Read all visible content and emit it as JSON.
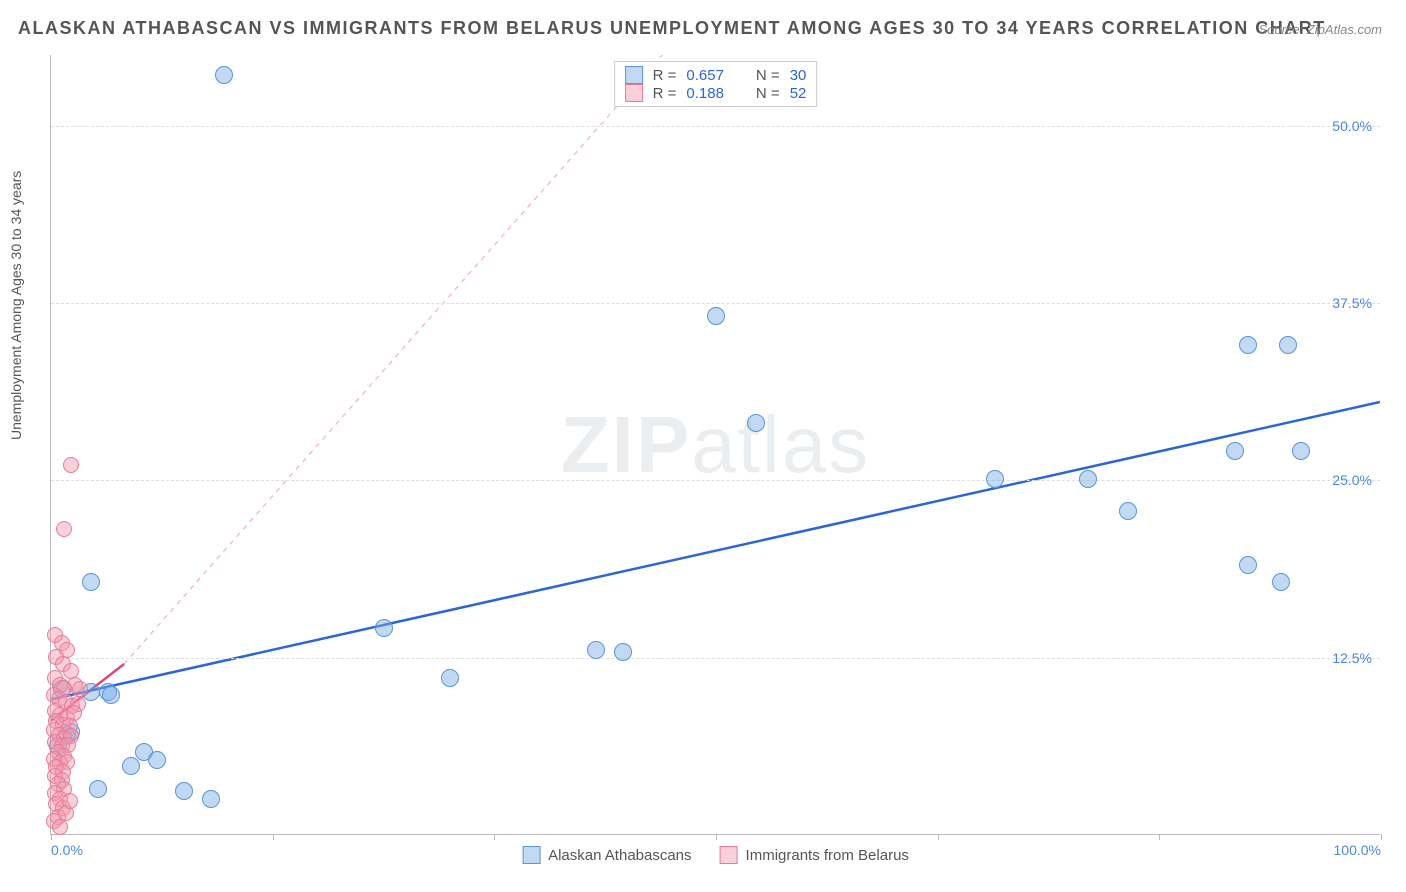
{
  "title": "ALASKAN ATHABASCAN VS IMMIGRANTS FROM BELARUS UNEMPLOYMENT AMONG AGES 30 TO 34 YEARS CORRELATION CHART",
  "source": "Source: ZipAtlas.com",
  "watermark_bold": "ZIP",
  "watermark_light": "atlas",
  "chart": {
    "type": "scatter",
    "ylabel": "Unemployment Among Ages 30 to 34 years",
    "xlim": [
      0,
      100
    ],
    "ylim": [
      0,
      55
    ],
    "x_ticks": [
      0,
      16.67,
      33.33,
      50,
      66.67,
      83.33,
      100
    ],
    "x_tick_labels_shown": {
      "0": "0.0%",
      "100": "100.0%"
    },
    "y_ticks": [
      12.5,
      25.0,
      37.5,
      50.0
    ],
    "y_tick_labels": [
      "12.5%",
      "25.0%",
      "37.5%",
      "50.0%"
    ],
    "background_color": "#ffffff",
    "grid_color": "#dddddd",
    "axis_color": "#bbbbbb",
    "tick_label_color": "#4a86e8",
    "series": [
      {
        "name": "Alaskan Athabascans",
        "color_fill": "rgba(120,170,230,0.45)",
        "color_stroke": "#5a95d8",
        "marker_radius": 9,
        "trend": {
          "x1": 0,
          "y1": 9.5,
          "x2": 100,
          "y2": 30.5,
          "dash": "none",
          "width": 2.5,
          "color": "#2a66d8"
        },
        "R_label": "R =",
        "R": "0.657",
        "N_label": "N =",
        "N": "30",
        "points": [
          [
            13,
            53.5
          ],
          [
            50,
            36.5
          ],
          [
            0.8,
            10.2
          ],
          [
            3,
            10
          ],
          [
            4.3,
            10
          ],
          [
            4.5,
            9.8
          ],
          [
            1.2,
            7
          ],
          [
            1.5,
            7.2
          ],
          [
            7,
            5.8
          ],
          [
            8,
            5.2
          ],
          [
            3,
            17.8
          ],
          [
            25,
            14.5
          ],
          [
            30,
            11
          ],
          [
            41,
            13
          ],
          [
            43,
            12.8
          ],
          [
            53,
            29
          ],
          [
            71,
            25
          ],
          [
            78,
            25
          ],
          [
            93,
            34.5
          ],
          [
            90,
            34.5
          ],
          [
            81,
            22.8
          ],
          [
            89,
            27
          ],
          [
            94,
            27
          ],
          [
            90,
            19
          ],
          [
            92.5,
            17.8
          ],
          [
            3.5,
            3.2
          ],
          [
            10,
            3
          ],
          [
            12,
            2.5
          ],
          [
            6,
            4.8
          ],
          [
            0.5,
            6.2
          ]
        ]
      },
      {
        "name": "Immigrants from Belarus",
        "color_fill": "rgba(240,150,170,0.45)",
        "color_stroke": "#e87b98",
        "marker_radius": 8,
        "trend": {
          "x1": 0,
          "y1": 8,
          "x2": 5.5,
          "y2": 12,
          "dash": "none",
          "width": 2.5,
          "color": "#d84a72"
        },
        "trend_ext": {
          "x1": 5.5,
          "y1": 12,
          "x2": 46,
          "y2": 55,
          "dash": "5,5",
          "width": 1.2,
          "color": "#f0b2c0"
        },
        "R_label": "R =",
        "R": "0.188",
        "N_label": "N =",
        "N": "52",
        "points": [
          [
            1.5,
            26
          ],
          [
            1,
            21.5
          ],
          [
            0.3,
            14
          ],
          [
            0.8,
            13.5
          ],
          [
            1.2,
            13
          ],
          [
            0.4,
            12.5
          ],
          [
            0.9,
            12
          ],
          [
            1.5,
            11.5
          ],
          [
            0.3,
            11
          ],
          [
            0.7,
            10.5
          ],
          [
            1.8,
            10.5
          ],
          [
            2.2,
            10.2
          ],
          [
            1.0,
            10.3
          ],
          [
            0.2,
            9.8
          ],
          [
            0.6,
            9.5
          ],
          [
            1.1,
            9.3
          ],
          [
            1.6,
            9
          ],
          [
            2.0,
            9.2
          ],
          [
            0.3,
            8.7
          ],
          [
            0.7,
            8.4
          ],
          [
            1.2,
            8.2
          ],
          [
            1.7,
            8.5
          ],
          [
            0.4,
            8
          ],
          [
            0.9,
            7.7
          ],
          [
            1.4,
            7.6
          ],
          [
            0.2,
            7.3
          ],
          [
            0.6,
            7
          ],
          [
            1.0,
            6.8
          ],
          [
            1.5,
            6.9
          ],
          [
            0.3,
            6.5
          ],
          [
            0.8,
            6.2
          ],
          [
            1.3,
            6.3
          ],
          [
            0.5,
            5.8
          ],
          [
            1.0,
            5.5
          ],
          [
            0.2,
            5.3
          ],
          [
            0.7,
            5
          ],
          [
            1.2,
            5.1
          ],
          [
            0.4,
            4.7
          ],
          [
            0.9,
            4.4
          ],
          [
            0.3,
            4.1
          ],
          [
            0.8,
            3.8
          ],
          [
            0.5,
            3.5
          ],
          [
            1.0,
            3.2
          ],
          [
            0.3,
            2.9
          ],
          [
            0.7,
            2.5
          ],
          [
            0.4,
            2.1
          ],
          [
            0.9,
            1.8
          ],
          [
            0.5,
            1.2
          ],
          [
            0.2,
            0.9
          ],
          [
            0.7,
            0.5
          ],
          [
            1.1,
            1.5
          ],
          [
            1.4,
            2.3
          ]
        ]
      }
    ],
    "legend_top_swatches": [
      {
        "fill": "rgba(120,170,230,0.45)",
        "stroke": "#5a95d8"
      },
      {
        "fill": "rgba(240,150,170,0.45)",
        "stroke": "#e87b98"
      }
    ]
  }
}
